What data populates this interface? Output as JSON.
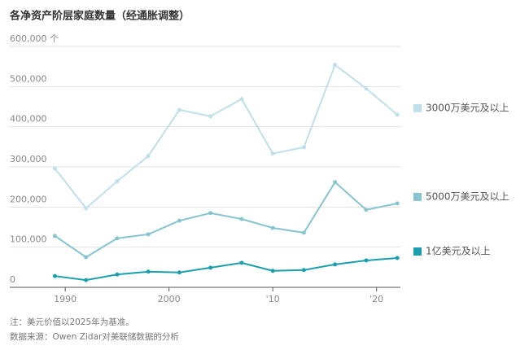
{
  "chart_data": {
    "type": "line",
    "title": "各净资产阶层家庭数量（经通胀调整）",
    "x": [
      1989,
      1992,
      1995,
      1998,
      2001,
      2004,
      2007,
      2010,
      2013,
      2016,
      2019,
      2022
    ],
    "series": [
      {
        "name": "3000万美元及以上",
        "color": "#bfe0ea",
        "values": [
          296000,
          197000,
          264000,
          327000,
          442000,
          426000,
          469000,
          333000,
          349000,
          554000,
          495000,
          430000
        ]
      },
      {
        "name": "5000万美元及以上",
        "color": "#86c4d0",
        "values": [
          128000,
          75000,
          122000,
          132000,
          166000,
          185000,
          170000,
          148000,
          136000,
          262000,
          193000,
          209000
        ]
      },
      {
        "name": "1亿美元及以上",
        "color": "#1a9fae",
        "values": [
          28000,
          18000,
          32000,
          39000,
          37000,
          49000,
          61000,
          41000,
          43000,
          57000,
          67000,
          73000
        ]
      }
    ],
    "xlim": [
      1986.3,
      2022.3
    ],
    "xticks": [
      1990,
      2000,
      {
        "value": 2010,
        "label": "'10"
      },
      {
        "value": 2020,
        "label": "'20"
      }
    ],
    "ylim": [
      0,
      600000
    ],
    "yticks": [
      {
        "value": 0,
        "label": "0"
      },
      {
        "value": 100000,
        "label": "100,000"
      },
      {
        "value": 200000,
        "label": "200,000"
      },
      {
        "value": 300000,
        "label": "300,000"
      },
      {
        "value": 400000,
        "label": "400,000"
      },
      {
        "value": 500000,
        "label": "500,000"
      },
      {
        "value": 600000,
        "label": "600,000 个"
      }
    ],
    "grid": true,
    "notes": [
      "注：美元价值以2025年为基准。",
      "数据来源：Owen Zidar对美联储数据的分析"
    ]
  }
}
